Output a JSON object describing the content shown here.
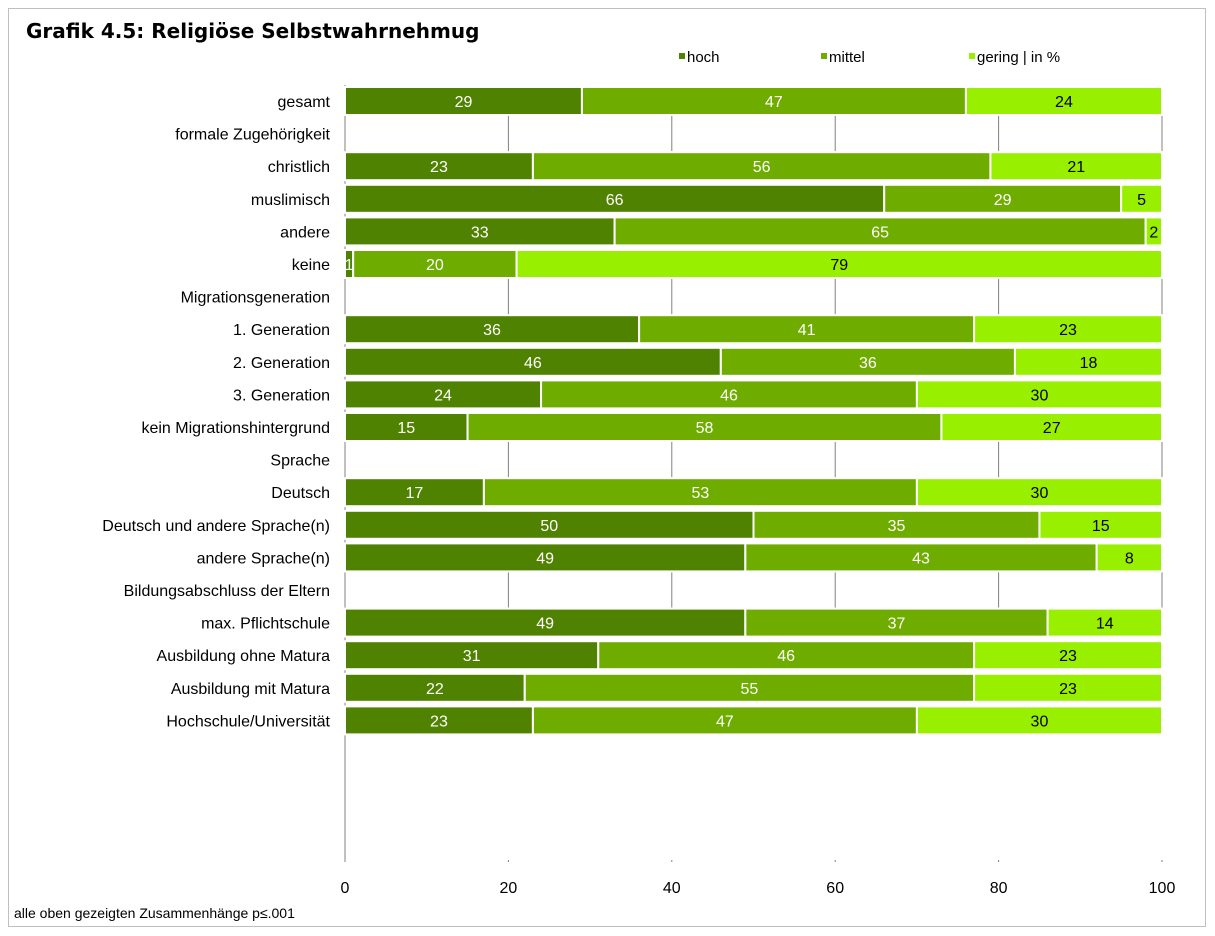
{
  "title": "Grafik 4.5: Religiöse Selbstwahrnehmug",
  "footnote": "alle oben gezeigten Zusammenhänge p≤.001",
  "colors": {
    "hoch": "#4f8200",
    "mittel": "#6fac00",
    "gering": "#99ef00",
    "grid": "#808080"
  },
  "chart_data": {
    "type": "bar",
    "orientation": "horizontal",
    "stacked": true,
    "title": "Grafik 4.5: Religiöse Selbstwahrnehmug",
    "xlim": [
      0,
      100
    ],
    "xticks": [
      "0",
      "20",
      "40",
      "60",
      "80",
      "100"
    ],
    "grid": "vertical lines in group gaps",
    "legend_position": "top",
    "legend": [
      "hoch",
      "mittel",
      "gering | in %"
    ],
    "categories": [
      "gesamt",
      "formale Zugehörigkeit",
      "christlich",
      "muslimisch",
      "andere",
      "keine",
      "Migrationsgeneration",
      "1. Generation",
      "2. Generation",
      "3. Generation",
      "kein Migrationshintergrund",
      "Sprache",
      "Deutsch",
      "Deutsch und andere Sprache(n)",
      "andere Sprache(n)",
      "Bildungsabschluss der Eltern",
      "max. Pflichtschule",
      "Ausbildung ohne Matura",
      "Ausbildung mit Matura",
      "Hochschule/Universität"
    ],
    "series": [
      {
        "name": "hoch",
        "values": [
          29,
          null,
          23,
          66,
          33,
          1,
          null,
          36,
          46,
          24,
          15,
          null,
          17,
          50,
          49,
          null,
          49,
          31,
          22,
          23
        ]
      },
      {
        "name": "mittel",
        "values": [
          47,
          null,
          56,
          29,
          65,
          20,
          null,
          41,
          36,
          46,
          58,
          null,
          53,
          35,
          43,
          null,
          37,
          46,
          55,
          47
        ]
      },
      {
        "name": "gering",
        "values": [
          24,
          null,
          21,
          5,
          2,
          79,
          null,
          23,
          18,
          30,
          27,
          null,
          30,
          15,
          8,
          null,
          14,
          23,
          23,
          30
        ]
      }
    ]
  }
}
